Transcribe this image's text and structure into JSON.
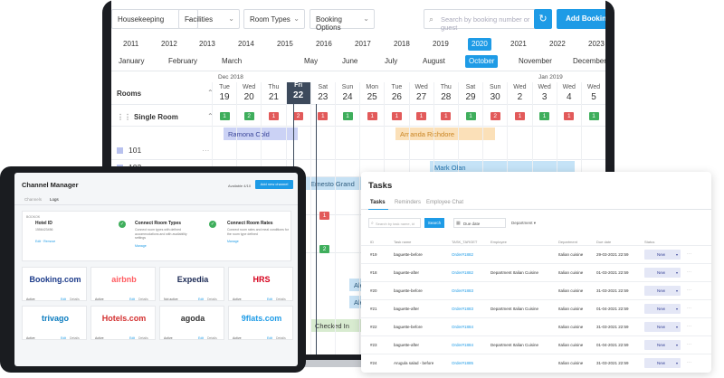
{
  "toolbar": {
    "housekeeping": "Housekeeping",
    "facilities": "Facilities",
    "room_types": "Room Types",
    "booking_options": "Booking Options",
    "search_placeholder": "Search by booking number or guest",
    "add_booking": "Add Booking"
  },
  "years": [
    "2011",
    "2012",
    "2013",
    "2014",
    "2015",
    "2016",
    "2017",
    "2018",
    "2019",
    "2020",
    "2021",
    "2022",
    "2023"
  ],
  "selected_year": "2020",
  "months": [
    "January",
    "February",
    "March",
    "May",
    "June",
    "July",
    "August",
    "October",
    "November",
    "December"
  ],
  "selected_month": "October",
  "calendar": {
    "month_label_left": "Dec 2018",
    "month_label_right": "Jan 2019",
    "rooms_label": "Rooms",
    "days": [
      {
        "name": "Tue",
        "num": "19"
      },
      {
        "name": "Wed",
        "num": "20"
      },
      {
        "name": "Thu",
        "num": "21"
      },
      {
        "name": "Fri",
        "num": "22"
      },
      {
        "name": "Sat",
        "num": "23"
      },
      {
        "name": "Sun",
        "num": "24"
      },
      {
        "name": "Mon",
        "num": "25"
      },
      {
        "name": "Tue",
        "num": "26"
      },
      {
        "name": "Wed",
        "num": "27"
      },
      {
        "name": "Thu",
        "num": "28"
      },
      {
        "name": "Sat",
        "num": "29"
      },
      {
        "name": "Sun",
        "num": "30"
      },
      {
        "name": "Wed",
        "num": "2"
      },
      {
        "name": "Wed",
        "num": "3"
      },
      {
        "name": "Wed",
        "num": "4"
      },
      {
        "name": "Wed",
        "num": "5"
      }
    ],
    "today_index": 3,
    "room_type": "Single Room",
    "availability": [
      "1",
      "2",
      "1",
      "2",
      "1",
      "1",
      "1",
      "1",
      "1",
      "1",
      "1",
      "2",
      "1",
      "1",
      "1",
      "1"
    ],
    "availability_status": [
      "ok",
      "ok",
      "low",
      "low",
      "low",
      "ok",
      "low",
      "low",
      "low",
      "low",
      "ok",
      "low",
      "low",
      "ok",
      "low",
      "ok"
    ],
    "rooms": [
      "101",
      "102"
    ],
    "bookings": {
      "ramona": "Ramona Cold",
      "amanda": "Amanda Richdore",
      "mark": "Mark Olan",
      "ernesto": "Ernesto Grand",
      "alex_a": "Ale",
      "alex_b": "Alex",
      "checked_in": "Checked In"
    },
    "extra_badges": [
      "2",
      "1"
    ]
  },
  "channel_manager": {
    "title": "Channel Manager",
    "available": "Available 4/10",
    "add_button": "Add new channel",
    "tabs": [
      "Channels",
      "Logs"
    ],
    "card_header": "BOOKOK",
    "steps": [
      {
        "title": "Hotel ID",
        "desc": "1556423456",
        "link": "Edit  ·  Remove"
      },
      {
        "title": "Connect Room Types",
        "desc": "Connect room types with defined accommodations and with availability settings",
        "link": "Manage"
      },
      {
        "title": "Connect Room Rates",
        "desc": "Connect room rates and meal conditions for the room type defined",
        "link": "Manage"
      }
    ],
    "channels": [
      {
        "name": "Booking.com",
        "status": "Active",
        "color": "#1c3b8a"
      },
      {
        "name": "airbnb",
        "status": "Active",
        "color": "#ff5a5f"
      },
      {
        "name": "Expedia",
        "status": "Not active",
        "color": "#1c2a55"
      },
      {
        "name": "HRS",
        "status": "Active",
        "color": "#d6001c"
      },
      {
        "name": "trivago",
        "status": "Active",
        "color": "#0a7bbf"
      },
      {
        "name": "Hotels.com",
        "status": "Active",
        "color": "#d32f2f"
      },
      {
        "name": "agoda",
        "status": "Active",
        "color": "#333333"
      },
      {
        "name": "9flats.com",
        "status": "Active",
        "color": "#1e9be6"
      }
    ],
    "edit": "Edit",
    "details": "Details"
  },
  "tasks": {
    "title": "Tasks",
    "tabs": [
      "Tasks",
      "Reminders",
      "Employee Chat"
    ],
    "search_placeholder": "Search by task name, id",
    "search_button": "Search",
    "due_date": "Due date",
    "department": "Department",
    "columns": [
      "ID",
      "Task name",
      "TASK_TARGET",
      "Employee",
      "Department",
      "Due date",
      "Status"
    ],
    "rows": [
      {
        "id": "#19",
        "name": "baguette-before",
        "target": "Order#1882",
        "employee": "",
        "department": "Italian cuisine",
        "due": "29-03-2021 22:59",
        "status": "New"
      },
      {
        "id": "#18",
        "name": "baguette-after",
        "target": "Order#1882",
        "employee": "Department Italian Cuisine",
        "department": "Italian cuisine",
        "due": "01-03-2021 22:59",
        "status": "New"
      },
      {
        "id": "#20",
        "name": "baguette-before",
        "target": "Order#1883",
        "employee": "",
        "department": "Italian cuisine",
        "due": "31-03-2021 22:59",
        "status": "New"
      },
      {
        "id": "#21",
        "name": "baguette-after",
        "target": "Order#1883",
        "employee": "Department Italian Cuisine",
        "department": "Italian cuisine",
        "due": "01-04-2021 22:59",
        "status": "New"
      },
      {
        "id": "#22",
        "name": "baguette-before",
        "target": "Order#1884",
        "employee": "",
        "department": "Italian cuisine",
        "due": "31-03-2021 22:59",
        "status": "New"
      },
      {
        "id": "#23",
        "name": "baguette-after",
        "target": "Order#1884",
        "employee": "Department Italian Cuisine",
        "department": "Italian cuisine",
        "due": "01-04-2021 22:59",
        "status": "New"
      },
      {
        "id": "#24",
        "name": "Arugula salad - before",
        "target": "Order#1885",
        "employee": "",
        "department": "Italian cuisine",
        "due": "31-03-2021 22:59",
        "status": "New"
      }
    ]
  }
}
